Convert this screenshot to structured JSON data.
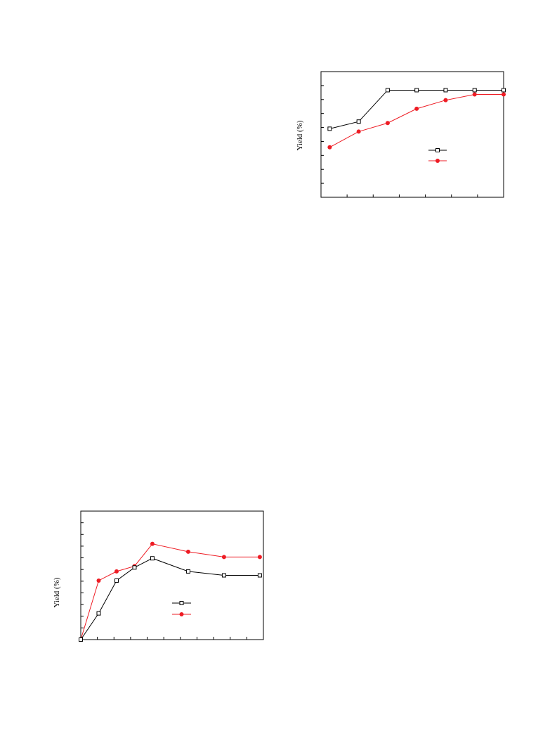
{
  "chart_data": [
    {
      "type": "line",
      "ylabel": "Yield (%)",
      "xlabel": "",
      "x": [
        1,
        2,
        3,
        4,
        5,
        6,
        7
      ],
      "xlim": [
        0.7,
        7.0
      ],
      "ylim": [
        0,
        8.8
      ],
      "grid": false,
      "legend": "center-right",
      "series": [
        {
          "marker": "open-square",
          "color": "#000000",
          "values": [
            4.8,
            5.3,
            7.5,
            7.5,
            7.5,
            7.5,
            7.5
          ]
        },
        {
          "marker": "filled-circle",
          "color": "#ee1c24",
          "values": [
            3.5,
            4.6,
            5.2,
            6.2,
            6.8,
            7.2,
            7.2
          ]
        }
      ]
    },
    {
      "type": "line",
      "ylabel": "Yield (%)",
      "xlabel": "",
      "x": [
        0,
        1,
        2,
        3,
        4,
        6,
        8,
        10
      ],
      "xlim": [
        0,
        10.2
      ],
      "ylim": [
        0,
        9.8
      ],
      "grid": false,
      "legend": "center-right",
      "series": [
        {
          "marker": "open-square",
          "color": "#000000",
          "values": [
            0,
            2,
            4.5,
            5.5,
            6.2,
            5.2,
            4.9,
            4.9
          ]
        },
        {
          "marker": "filled-circle",
          "color": "#ee1c24",
          "values": [
            0,
            4.5,
            5.2,
            5.6,
            7.3,
            6.7,
            6.3,
            6.3
          ]
        }
      ]
    }
  ]
}
